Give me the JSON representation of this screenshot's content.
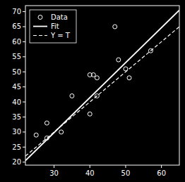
{
  "chart_data": {
    "type": "scatter",
    "series": [
      {
        "name": "Data",
        "type": "scatter",
        "marker": "circle",
        "color": "#ffffff",
        "x": [
          25,
          28,
          28,
          32,
          35,
          40,
          40,
          41,
          42,
          42,
          47,
          48,
          50,
          51,
          57
        ],
        "values": [
          29,
          28,
          33,
          30,
          42,
          49,
          36,
          49,
          48,
          42,
          65,
          54,
          51,
          48,
          57
        ]
      },
      {
        "name": "Fit",
        "type": "line",
        "line_style": "solid",
        "color": "#ffffff",
        "x": [
          22,
          65
        ],
        "values": [
          20.5,
          70.5
        ]
      },
      {
        "name": "Y = T",
        "type": "line",
        "line_style": "dashed",
        "color": "#ffffff",
        "x": [
          22,
          65
        ],
        "values": [
          22,
          65
        ]
      }
    ],
    "xlim": [
      22,
      65
    ],
    "ylim": [
      19,
      72
    ],
    "xticks": [
      30,
      40,
      50,
      60
    ],
    "yticks": [
      20,
      25,
      30,
      35,
      40,
      45,
      50,
      55,
      60,
      65,
      70
    ],
    "grid": false,
    "legend": "upper left"
  }
}
